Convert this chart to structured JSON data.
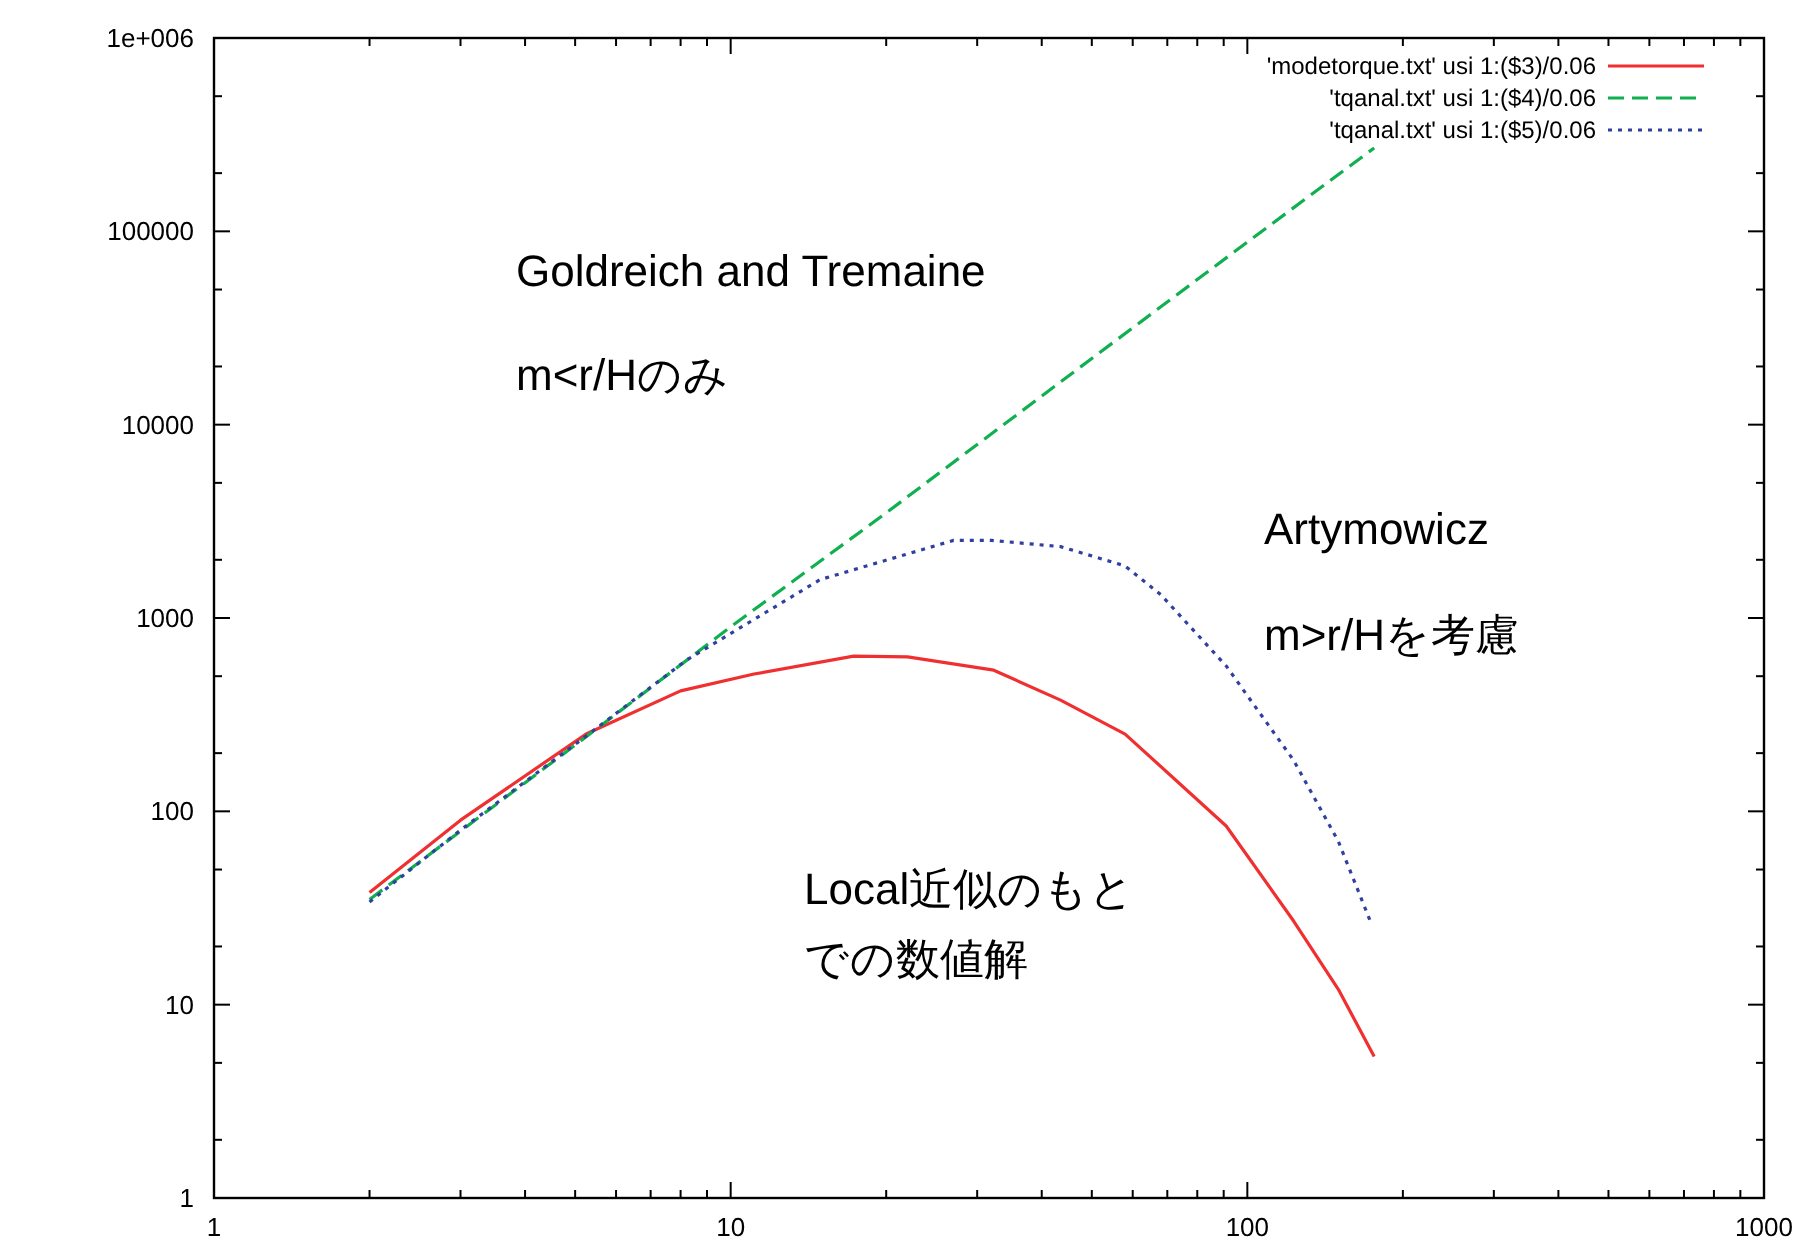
{
  "chart_data": {
    "type": "line",
    "log": "xy",
    "xlim": [
      1,
      1000
    ],
    "ylim": [
      1,
      1000000
    ],
    "xticks": [
      1,
      {
        "value": 2,
        "label": null
      },
      {
        "value": 3,
        "label": null
      },
      {
        "value": 4,
        "label": null
      },
      {
        "value": 5,
        "label": null
      },
      {
        "value": 6,
        "label": null
      },
      {
        "value": 7,
        "label": null
      },
      {
        "value": 8,
        "label": null
      },
      {
        "value": 9,
        "label": null
      },
      10,
      {
        "value": 20,
        "label": null
      },
      {
        "value": 30,
        "label": null
      },
      {
        "value": 40,
        "label": null
      },
      {
        "value": 50,
        "label": null
      },
      {
        "value": 60,
        "label": null
      },
      {
        "value": 70,
        "label": null
      },
      {
        "value": 80,
        "label": null
      },
      {
        "value": 90,
        "label": null
      },
      100,
      {
        "value": 200,
        "label": null
      },
      {
        "value": 300,
        "label": null
      },
      {
        "value": 400,
        "label": null
      },
      {
        "value": 500,
        "label": null
      },
      {
        "value": 600,
        "label": null
      },
      {
        "value": 700,
        "label": null
      },
      {
        "value": 800,
        "label": null
      },
      {
        "value": 900,
        "label": null
      },
      1000
    ],
    "yticks": [
      1,
      {
        "value": 2,
        "label": null
      },
      {
        "value": 5,
        "label": null
      },
      10,
      {
        "value": 20,
        "label": null
      },
      {
        "value": 50,
        "label": null
      },
      100,
      {
        "value": 200,
        "label": null
      },
      {
        "value": 500,
        "label": null
      },
      1000,
      {
        "value": 2000,
        "label": null
      },
      {
        "value": 5000,
        "label": null
      },
      10000,
      {
        "value": 20000,
        "label": null
      },
      {
        "value": 50000,
        "label": null
      },
      100000,
      {
        "value": 200000,
        "label": null
      },
      {
        "value": 500000,
        "label": null
      },
      {
        "value": 1000000,
        "label": "1e+006"
      }
    ],
    "grid": false,
    "legend": "top right",
    "marker": "none",
    "series": [
      {
        "name": "'modetorque.txt' usi 1:($3)/0.06",
        "color": "#f03030",
        "line_style": "solid",
        "x": [
          2,
          3,
          5.25,
          8,
          11.1,
          17.3,
          22,
          32.3,
          43.5,
          58,
          91,
          123,
          150,
          176
        ],
        "values": [
          38,
          90,
          251,
          420,
          513,
          635,
          630,
          537,
          376,
          251,
          84,
          27,
          12,
          5.4
        ]
      },
      {
        "name": "'tqanal.txt' usi 1:($4)/0.06",
        "color": "#10b050",
        "line_style": "dashed",
        "x": [
          2,
          5,
          10,
          20,
          50,
          100,
          176
        ],
        "values": [
          35,
          220,
          900,
          3500,
          22000,
          88000,
          270000
        ]
      },
      {
        "name": "'tqanal.txt' usi 1:($5)/0.06",
        "color": "#3040a0",
        "line_style": "dotted",
        "x": [
          2,
          3,
          5.25,
          8.2,
          14.9,
          27,
          32,
          43.5,
          58,
          68,
          91,
          123,
          150,
          173
        ],
        "values": [
          34,
          80,
          245,
          604,
          1580,
          2520,
          2520,
          2340,
          1860,
          1320,
          565,
          183,
          70,
          27
        ]
      }
    ],
    "annotations": [
      "Goldreich and Tremaine",
      "m<r/Hのみ",
      "Artymowicz",
      "m>r/Hを考慮",
      "Local近似のもと",
      "での数値解"
    ]
  }
}
